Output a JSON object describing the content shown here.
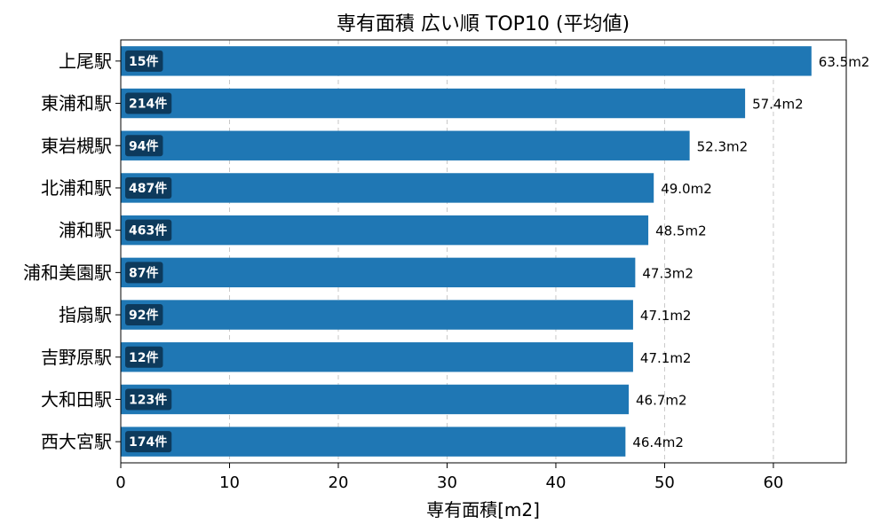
{
  "chart_data": {
    "type": "bar",
    "orientation": "horizontal",
    "title": "専有面積 広い順 TOP10 (平均値)",
    "xlabel": "専有面積[m2]",
    "ylabel": "",
    "xlim": [
      0,
      66.7
    ],
    "xticks": [
      0,
      10,
      20,
      30,
      40,
      50,
      60
    ],
    "grid": "x",
    "bar_color": "#1f77b4",
    "count_badge_color": "#0d3a5c",
    "categories": [
      "上尾駅",
      "東浦和駅",
      "東岩槻駅",
      "北浦和駅",
      "浦和駅",
      "浦和美園駅",
      "指扇駅",
      "吉野原駅",
      "大和田駅",
      "西大宮駅"
    ],
    "values": [
      63.5,
      57.4,
      52.3,
      49.0,
      48.5,
      47.3,
      47.1,
      47.1,
      46.7,
      46.4
    ],
    "value_labels": [
      "63.5m2",
      "57.4m2",
      "52.3m2",
      "49.0m2",
      "48.5m2",
      "47.3m2",
      "47.1m2",
      "47.1m2",
      "46.7m2",
      "46.4m2"
    ],
    "counts": [
      "15件",
      "214件",
      "94件",
      "487件",
      "463件",
      "87件",
      "92件",
      "12件",
      "123件",
      "174件"
    ]
  }
}
